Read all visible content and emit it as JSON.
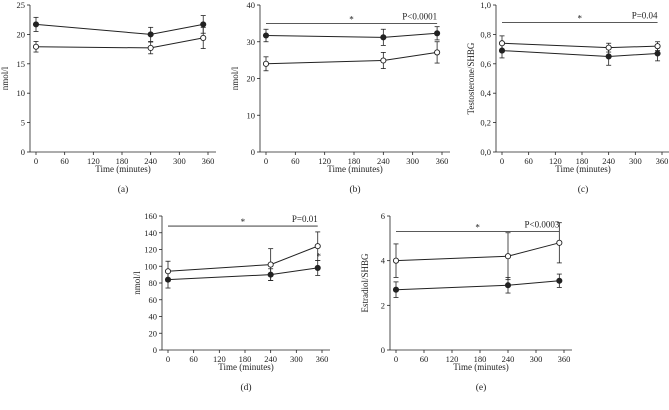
{
  "figure": {
    "x_label": "Time (minutes)",
    "series_names": [
      "Filled circles (●)",
      "Open circles (○)"
    ],
    "colors": {
      "line": "#222222",
      "open_fill": "#ffffff",
      "filled_fill": "#222222"
    }
  },
  "chart_data": [
    {
      "id": "a",
      "type": "line",
      "caption": "(a)",
      "xlabel": "Time (minutes)",
      "ylabel": "nmol/l",
      "xlim": [
        0,
        360
      ],
      "ylim": [
        0,
        25
      ],
      "x_ticks": [
        0,
        60,
        120,
        180,
        240,
        300,
        360
      ],
      "y_ticks": [
        0,
        5,
        10,
        15,
        20,
        25
      ],
      "y_tick_labels": [
        "0",
        "5",
        "10",
        "15",
        "20",
        "25"
      ],
      "x": [
        0,
        240,
        350
      ],
      "series": [
        {
          "name": "Filled circles",
          "marker": "filled",
          "values": [
            21.7,
            20.0,
            21.7
          ],
          "err": [
            1.2,
            1.2,
            1.5
          ]
        },
        {
          "name": "Open circles",
          "marker": "open",
          "values": [
            17.9,
            17.7,
            19.4
          ],
          "err": [
            0.9,
            1.0,
            1.8
          ]
        }
      ],
      "annotation": null
    },
    {
      "id": "b",
      "type": "line",
      "caption": "(b)",
      "xlabel": "Time (minutes)",
      "ylabel": "nmol/l",
      "xlim": [
        0,
        360
      ],
      "ylim": [
        0,
        40
      ],
      "x_ticks": [
        0,
        60,
        120,
        180,
        240,
        300,
        360
      ],
      "y_ticks": [
        0,
        10,
        20,
        30,
        40
      ],
      "y_tick_labels": [
        "0",
        "10",
        "20",
        "30",
        "40"
      ],
      "x": [
        0,
        240,
        350
      ],
      "series": [
        {
          "name": "Filled circles",
          "marker": "filled",
          "values": [
            31.7,
            31.2,
            32.3
          ],
          "err": [
            1.7,
            2.2,
            1.8
          ]
        },
        {
          "name": "Open circles",
          "marker": "open",
          "values": [
            24.0,
            24.9,
            27.1
          ],
          "err": [
            1.9,
            2.2,
            2.9
          ]
        }
      ],
      "annotation": {
        "star": "*",
        "p_text": "P<0.0001",
        "y": 35
      }
    },
    {
      "id": "c",
      "type": "line",
      "caption": "(c)",
      "xlabel": "Time (minutes)",
      "ylabel": "Testosterone/SHBG",
      "xlim": [
        0,
        360
      ],
      "ylim": [
        0,
        1
      ],
      "x_ticks": [
        0,
        60,
        120,
        180,
        240,
        300,
        360
      ],
      "y_ticks": [
        0,
        0.2,
        0.4,
        0.6,
        0.8,
        1.0
      ],
      "y_tick_labels": [
        "0,0",
        "0,2",
        "0,4",
        "0,6",
        "0,8",
        "1,0"
      ],
      "x": [
        0,
        240,
        350
      ],
      "series": [
        {
          "name": "Filled circles",
          "marker": "filled",
          "values": [
            0.69,
            0.65,
            0.67
          ],
          "err": [
            0.05,
            0.06,
            0.05
          ]
        },
        {
          "name": "Open circles",
          "marker": "open",
          "values": [
            0.74,
            0.71,
            0.72
          ],
          "err": [
            0.05,
            0.03,
            0.03
          ]
        }
      ],
      "annotation": {
        "star": "*",
        "p_text": "P=0.04",
        "y": 0.88
      }
    },
    {
      "id": "d",
      "type": "line",
      "caption": "(d)",
      "xlabel": "Time (minutes)",
      "ylabel": "nmol/l",
      "xlim": [
        0,
        360
      ],
      "ylim": [
        0,
        160
      ],
      "x_ticks": [
        0,
        60,
        120,
        180,
        240,
        300,
        360
      ],
      "y_ticks": [
        0,
        20,
        40,
        60,
        80,
        100,
        120,
        140,
        160
      ],
      "y_tick_labels": [
        "0",
        "20",
        "40",
        "60",
        "80",
        "100",
        "120",
        "140",
        "160"
      ],
      "x": [
        0,
        240,
        350
      ],
      "series": [
        {
          "name": "Filled circles",
          "marker": "filled",
          "values": [
            84,
            90,
            98
          ],
          "err": [
            10,
            7,
            9
          ]
        },
        {
          "name": "Open circles",
          "marker": "open",
          "values": [
            94,
            102,
            124
          ],
          "err": [
            12,
            19,
            17
          ]
        }
      ],
      "annotation": {
        "star": "*",
        "p_text": "P=0.01",
        "y": 148,
        "extra_star": {
          "text": "*",
          "x": 350,
          "y": 113
        }
      }
    },
    {
      "id": "e",
      "type": "line",
      "caption": "(e)",
      "xlabel": "Time (minutes)",
      "ylabel": "Estradiol/SHBG",
      "xlim": [
        0,
        360
      ],
      "ylim": [
        0,
        6
      ],
      "x_ticks": [
        0,
        60,
        120,
        180,
        240,
        300,
        360
      ],
      "y_ticks": [
        0,
        2,
        4,
        6
      ],
      "y_tick_labels": [
        "0",
        "2",
        "4",
        "6"
      ],
      "x": [
        0,
        240,
        350
      ],
      "series": [
        {
          "name": "Filled circles",
          "marker": "filled",
          "values": [
            2.7,
            2.9,
            3.1
          ],
          "err": [
            0.35,
            0.35,
            0.3
          ]
        },
        {
          "name": "Open circles",
          "marker": "open",
          "values": [
            4.0,
            4.2,
            4.8
          ],
          "err": [
            0.75,
            1.05,
            0.9
          ]
        }
      ],
      "annotation": {
        "star": "*",
        "p_text": "P<0.0003",
        "y": 5.3
      }
    }
  ]
}
